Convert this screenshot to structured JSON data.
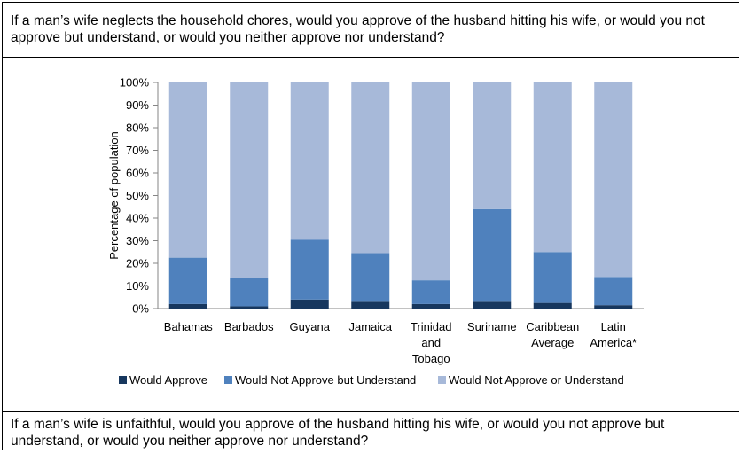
{
  "question_top": "If a man’s wife neglects the household chores, would you approve of the husband hitting his wife, or would you not approve but understand, or would you neither approve nor understand?",
  "question_bottom": "If a man’s wife is unfaithful, would you approve of the husband hitting his wife, or would you not approve but understand, or would you neither approve nor understand?",
  "colors": {
    "approve": "#17375e",
    "understand": "#4f81bd",
    "neither": "#a7b9d9"
  },
  "chart_data": {
    "type": "bar",
    "stacked": true,
    "categories": [
      [
        "Bahamas"
      ],
      [
        "Barbados"
      ],
      [
        "Guyana"
      ],
      [
        "Jamaica"
      ],
      [
        "Trinidad",
        "and",
        "Tobago"
      ],
      [
        "Suriname"
      ],
      [
        "Caribbean",
        "Average"
      ],
      [
        "Latin",
        "America*"
      ]
    ],
    "series": [
      {
        "name": "Would Approve",
        "values": [
          2,
          1,
          4,
          3,
          2,
          3,
          2.5,
          1.5
        ]
      },
      {
        "name": "Would Not Approve but Understand",
        "values": [
          20.5,
          12.5,
          26.5,
          21.5,
          10.5,
          41,
          22.5,
          12.5
        ]
      },
      {
        "name": "Would Not Approve or Understand",
        "values": [
          77.5,
          86.5,
          69.5,
          75.5,
          87.5,
          56,
          75,
          86
        ]
      }
    ],
    "ylabel": "Percentage of population",
    "ylim": [
      0,
      100
    ],
    "yticks": [
      "0%",
      "10%",
      "20%",
      "30%",
      "40%",
      "50%",
      "60%",
      "70%",
      "80%",
      "90%",
      "100%"
    ],
    "legend_position": "bottom",
    "grid": false
  }
}
